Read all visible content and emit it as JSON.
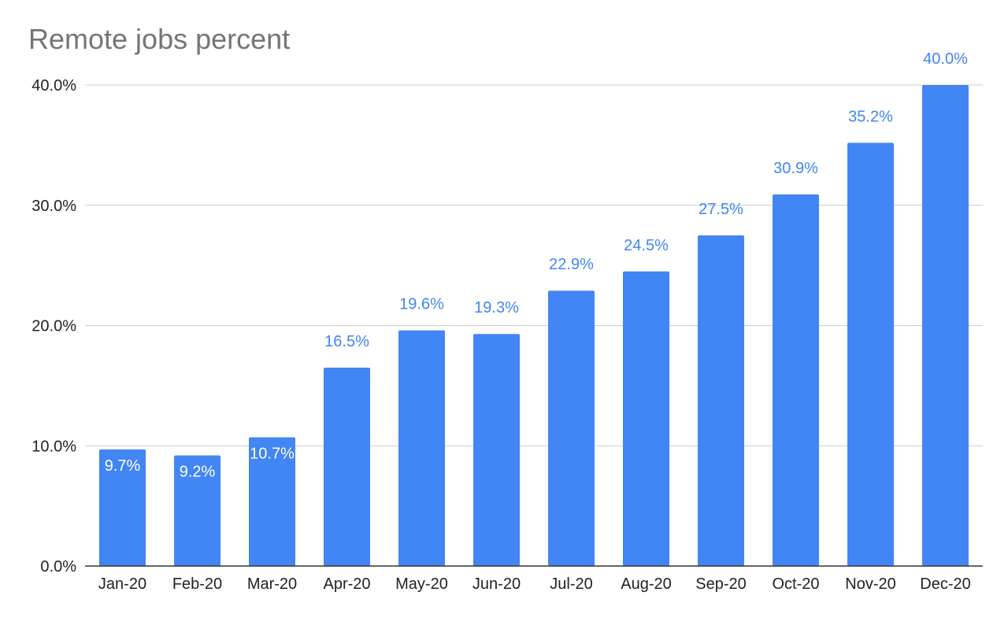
{
  "chart_data": {
    "type": "bar",
    "title": "Remote jobs percent",
    "xlabel": "",
    "ylabel": "",
    "categories": [
      "Jan-20",
      "Feb-20",
      "Mar-20",
      "Apr-20",
      "May-20",
      "Jun-20",
      "Jul-20",
      "Aug-20",
      "Sep-20",
      "Oct-20",
      "Nov-20",
      "Dec-20"
    ],
    "values": [
      9.7,
      9.2,
      10.7,
      16.5,
      19.6,
      19.3,
      22.9,
      24.5,
      27.5,
      30.9,
      35.2,
      40.0
    ],
    "data_labels": [
      "9.7%",
      "9.2%",
      "10.7%",
      "16.5%",
      "19.6%",
      "19.3%",
      "22.9%",
      "24.5%",
      "27.5%",
      "30.9%",
      "35.2%",
      "40.0%"
    ],
    "ylim": [
      0,
      40
    ],
    "yticks": [
      0,
      10,
      20,
      30,
      40
    ],
    "ytick_labels": [
      "0.0%",
      "10.0%",
      "20.0%",
      "30.0%",
      "40.0%"
    ],
    "grid": true,
    "legend": "none",
    "colors": {
      "bar": "#4285f4",
      "label_outside": "#4285f4",
      "label_inside": "#ffffff",
      "title": "#757575"
    }
  }
}
